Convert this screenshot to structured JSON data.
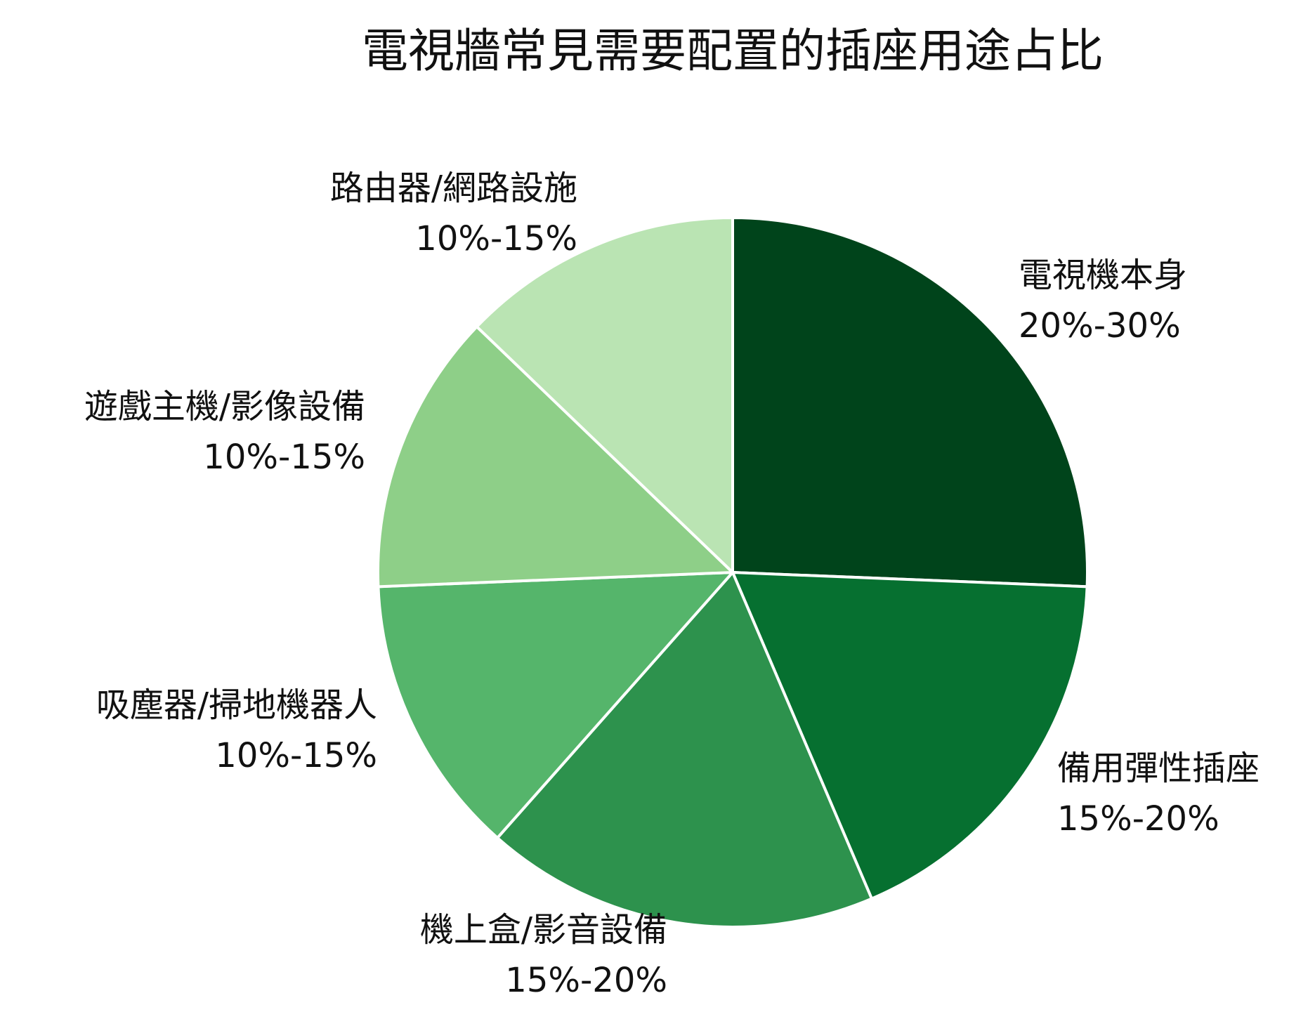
{
  "chart_data": {
    "type": "pie",
    "title": "電視牆常見需要配置的插座用途占比",
    "start_angle_deg": 90,
    "direction": "clockwise",
    "slices": [
      {
        "label": "電視機本身",
        "range": "20%-30%",
        "value": 25,
        "color": "#00441b"
      },
      {
        "label": "備用彈性插座",
        "range": "15%-20%",
        "value": 17.5,
        "color": "#067030"
      },
      {
        "label": "機上盒/影音設備",
        "range": "15%-20%",
        "value": 17.5,
        "color": "#2d924d"
      },
      {
        "label": "吸塵器/掃地機器人",
        "range": "10%-15%",
        "value": 12.5,
        "color": "#55b56b"
      },
      {
        "label": "遊戲主機/影像設備",
        "range": "10%-15%",
        "value": 12.5,
        "color": "#8ecf88"
      },
      {
        "label": "路由器/網路設施",
        "range": "10%-15%",
        "value": 12.5,
        "color": "#bae4b3"
      }
    ]
  }
}
